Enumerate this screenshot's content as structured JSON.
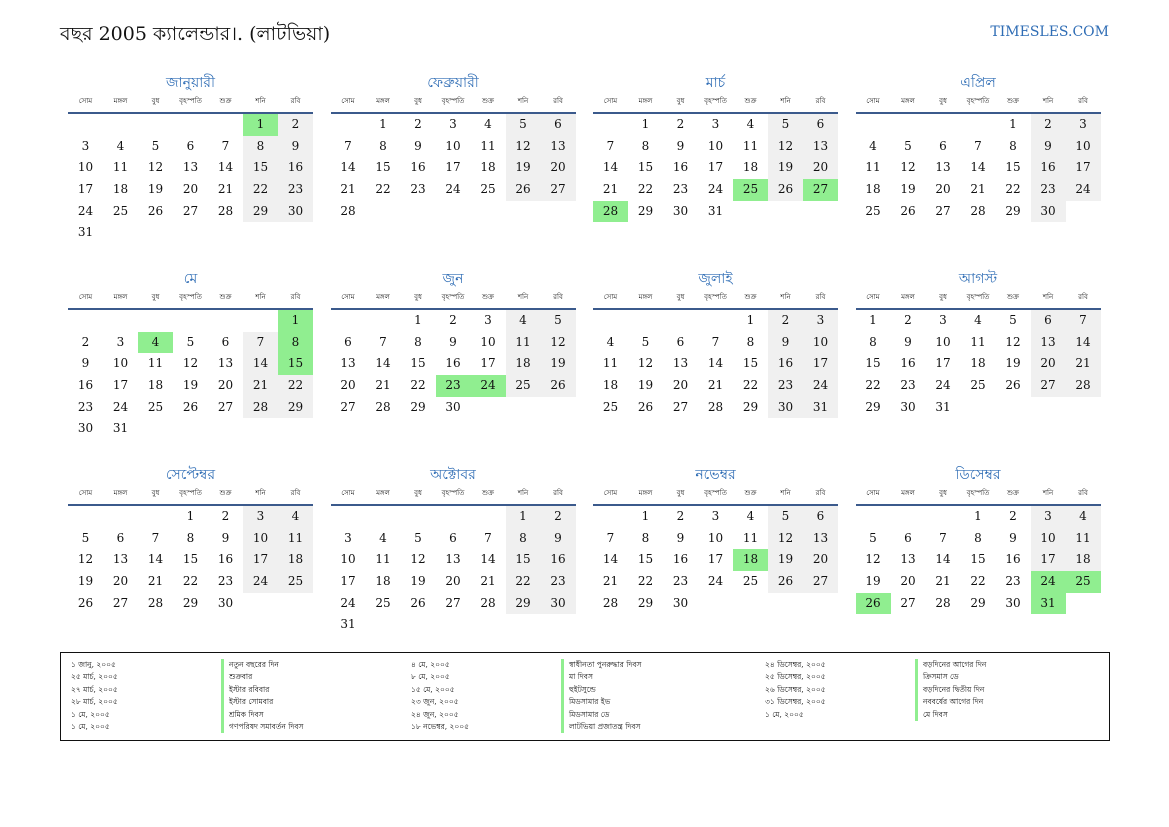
{
  "header": {
    "title": "বছর 2005 ক্যালেন্ডার।. (লাটভিয়া)",
    "site": "TIMESLES.COM"
  },
  "colors": {
    "accent": "#2f6db5",
    "holiday": "#90ee90",
    "weekend": "#f0f0f0"
  },
  "weekdays": [
    "সোম",
    "মঙ্গল",
    "বুধ",
    "বৃহস্পতি",
    "শুক্র",
    "শনি",
    "রবি"
  ],
  "months": [
    {
      "name": "জানুয়ারী",
      "start": 5,
      "days": 31,
      "holidays": [
        1
      ]
    },
    {
      "name": "ফেব্রুয়ারী",
      "start": 1,
      "days": 28,
      "holidays": []
    },
    {
      "name": "মার্চ",
      "start": 1,
      "days": 31,
      "holidays": [
        25,
        27,
        28
      ]
    },
    {
      "name": "এপ্রিল",
      "start": 4,
      "days": 30,
      "holidays": []
    },
    {
      "name": "মে",
      "start": 6,
      "days": 31,
      "holidays": [
        1,
        4,
        8,
        15
      ]
    },
    {
      "name": "জুন",
      "start": 2,
      "days": 30,
      "holidays": [
        23,
        24
      ]
    },
    {
      "name": "জুলাই",
      "start": 4,
      "days": 31,
      "holidays": []
    },
    {
      "name": "আগস্ট",
      "start": 0,
      "days": 31,
      "holidays": []
    },
    {
      "name": "সেপ্টেম্বর",
      "start": 3,
      "days": 30,
      "holidays": []
    },
    {
      "name": "অক্টোবর",
      "start": 5,
      "days": 31,
      "holidays": []
    },
    {
      "name": "নভেম্বর",
      "start": 1,
      "days": 30,
      "holidays": [
        18
      ]
    },
    {
      "name": "ডিসেম্বর",
      "start": 3,
      "days": 31,
      "holidays": [
        24,
        25,
        26,
        31
      ]
    }
  ],
  "legend": [
    {
      "date": "১ জানু, ২০০৫",
      "name": "নতুন বছরের দিন"
    },
    {
      "date": "২৫ মার্চ, ২০০৫",
      "name": "শুক্রবার"
    },
    {
      "date": "২৭ মার্চ, ২০০৫",
      "name": "ইস্টার রবিবার"
    },
    {
      "date": "২৮ মার্চ, ২০০৫",
      "name": "ইস্টার সোমবার"
    },
    {
      "date": "১ মে, ২০০৫",
      "name": "শ্রমিক দিবস"
    },
    {
      "date": "১ মে, ২০০৫",
      "name": "গণপরিষদ সমাবর্তন দিবস"
    },
    {
      "date": "৪ মে, ২০০৫",
      "name": "স্বাধীনতা পুনরুদ্ধার দিবস"
    },
    {
      "date": "৮ মে, ২০০৫",
      "name": "মা দিবস"
    },
    {
      "date": "১৫ মে, ২০০৫",
      "name": "হুইটসুন্ডে"
    },
    {
      "date": "২৩ জুন, ২০০৫",
      "name": "মিডসামার ইভ"
    },
    {
      "date": "২৪ জুন, ২০০৫",
      "name": "মিডসামার ডে"
    },
    {
      "date": "১৮ নভেম্বর, ২০০৫",
      "name": "লাটভিয়া প্রজাতন্ত্র দিবস"
    },
    {
      "date": "২৪ ডিসেম্বর, ২০০৫",
      "name": "বড়দিনের আগের দিন"
    },
    {
      "date": "২৫ ডিসেম্বর, ২০০৫",
      "name": "ক্রিসমাস ডে"
    },
    {
      "date": "২৬ ডিসেম্বর, ২০০৫",
      "name": "বড়দিনের দ্বিতীয় দিন"
    },
    {
      "date": "৩১ ডিসেম্বর, ২০০৫",
      "name": "নববর্ষের আগের দিন"
    },
    {
      "date": "১ মে, ২০০৫",
      "name": "মে দিবস"
    }
  ]
}
